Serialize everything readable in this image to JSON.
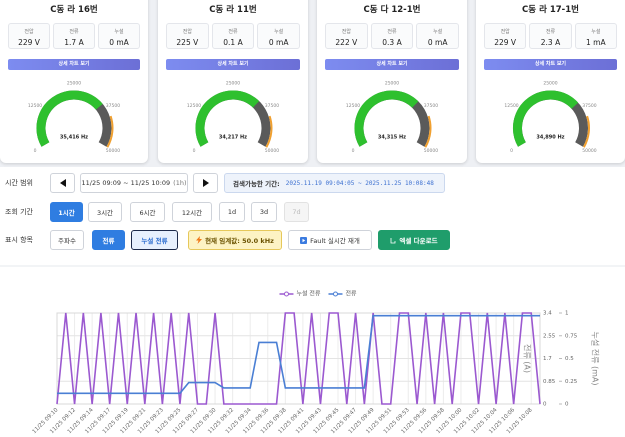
{
  "cards": [
    {
      "title": "C동 라 16번",
      "metrics": [
        {
          "label": "전압",
          "value": "229 V"
        },
        {
          "label": "전류",
          "value": "1.7 A"
        },
        {
          "label": "누설",
          "value": "0 mA"
        }
      ],
      "button": "상세 차트 보기",
      "gauge": {
        "range": [
          0,
          50000
        ],
        "ticks": [
          0,
          12500,
          25000,
          37500,
          50000
        ],
        "value": 35416,
        "value_label": "35,416 Hz"
      }
    },
    {
      "title": "C동 라 11번",
      "metrics": [
        {
          "label": "전압",
          "value": "225 V"
        },
        {
          "label": "전류",
          "value": "0.1 A"
        },
        {
          "label": "누설",
          "value": "0 mA"
        }
      ],
      "button": "상세 차트 보기",
      "gauge": {
        "range": [
          0,
          50000
        ],
        "ticks": [
          0,
          12500,
          25000,
          37500,
          50000
        ],
        "value": 34217,
        "value_label": "34,217 Hz"
      }
    },
    {
      "title": "C동 다 12-1번",
      "metrics": [
        {
          "label": "전압",
          "value": "222 V"
        },
        {
          "label": "전류",
          "value": "0.3 A"
        },
        {
          "label": "누설",
          "value": "0 mA"
        }
      ],
      "button": "상세 차트 보기",
      "gauge": {
        "range": [
          0,
          50000
        ],
        "ticks": [
          0,
          12500,
          25000,
          37500,
          50000
        ],
        "value": 34315,
        "value_label": "34,315 Hz"
      }
    },
    {
      "title": "C동 라 17-1번",
      "metrics": [
        {
          "label": "전압",
          "value": "229 V"
        },
        {
          "label": "전류",
          "value": "2.3 A"
        },
        {
          "label": "누설",
          "value": "1 mA"
        }
      ],
      "button": "상세 차트 보기",
      "gauge": {
        "range": [
          0,
          50000
        ],
        "ticks": [
          0,
          12500,
          25000,
          37500,
          50000
        ],
        "value": 34890,
        "value_label": "34,890 Hz"
      }
    }
  ],
  "controls": {
    "time_range": {
      "label": "시간 범위",
      "range": "11/25 09:09 ~ 11/25 10:09",
      "span": "(1h)",
      "available_label": "검색가능한 기간:",
      "available_range": "2025.11.19 09:04:05 ~ 2025.11.25 10:08:48"
    },
    "period": {
      "label": "조회 기간",
      "options": [
        "1시간",
        "3시간",
        "6시간",
        "12시간",
        "1d",
        "3d",
        "7d"
      ],
      "active": 0,
      "disabled": [
        6
      ]
    },
    "display": {
      "label": "표시 항목",
      "options": [
        "주파수",
        "전류",
        "누설 전류"
      ],
      "selected": [
        1,
        2
      ],
      "threshold": "현재 임계값: 50.0 kHz",
      "fault": "Fault 실시간 재개",
      "download": "엑셀 다운로드"
    }
  },
  "chart_data": {
    "type": "line",
    "legend": "top",
    "grid": true,
    "categories": [
      "11/25 09:10",
      null,
      "11/25 09:12",
      null,
      "11/25 09:14",
      null,
      "11/25 09:17",
      null,
      "11/25 09:19",
      null,
      "11/25 09:21",
      null,
      "11/25 09:23",
      null,
      "11/25 09:25",
      null,
      "11/25 09:27",
      null,
      "11/25 09:30",
      null,
      "11/25 09:32",
      null,
      "11/25 09:34",
      null,
      "11/25 09:36",
      null,
      "11/25 09:38",
      null,
      "11/25 09:41",
      null,
      "11/25 09:43",
      null,
      "11/25 09:45",
      null,
      "11/25 09:47",
      null,
      "11/25 09:49",
      null,
      "11/25 09:51",
      null,
      "11/25 09:53",
      null,
      "11/25 09:56",
      null,
      "11/25 09:58",
      null,
      "11/25 10:00",
      null,
      "11/25 10:02",
      null,
      "11/25 10:04",
      null,
      "11/25 10:06",
      null,
      "11/25 10:08",
      null
    ],
    "series": [
      {
        "name": "누설 전류",
        "color": "#9b59d0",
        "axis": "y2",
        "values": [
          0,
          1,
          0,
          1,
          0,
          1,
          0,
          1,
          0,
          1,
          0,
          1,
          0,
          1,
          0,
          1,
          0,
          0,
          1,
          0,
          0,
          0,
          0,
          0,
          0,
          0,
          1,
          1,
          0,
          1,
          0,
          1,
          1,
          0,
          1,
          0,
          1,
          0,
          0,
          1,
          1,
          0,
          1,
          0,
          1,
          0,
          1,
          1,
          0,
          1,
          0,
          1,
          0,
          1,
          1,
          0
        ]
      },
      {
        "name": "전류",
        "color": "#4a7fd4",
        "values": [
          0.4,
          0.4,
          0.4,
          0.4,
          0.4,
          0.4,
          0.4,
          0.4,
          0.4,
          0.4,
          0.4,
          0.4,
          0.4,
          0.4,
          0.4,
          0.8,
          0.8,
          0.8,
          0.8,
          0.6,
          0.6,
          0.6,
          0.6,
          2.3,
          2.3,
          2.3,
          0.6,
          0.6,
          0.6,
          0.6,
          0.6,
          0.6,
          0.6,
          0.6,
          0.6,
          0.6,
          3.3,
          3.3,
          3.3,
          3.3,
          3.3,
          3.3,
          3.3,
          3.3,
          3.3,
          3.3,
          3.3,
          3.3,
          3.3,
          3.3,
          3.3,
          3.3,
          3.3,
          3.3,
          3.3,
          3.3
        ]
      }
    ],
    "ylabel": "전류 (A)",
    "ylim": [
      0,
      3.4
    ],
    "yticks": [
      0,
      0.85,
      1.7,
      2.55,
      3.4
    ],
    "y2label": "누설 전류 (mA)",
    "y2lim": [
      0,
      1
    ],
    "y2ticks": [
      0,
      0.25,
      0.5,
      0.75,
      1
    ]
  }
}
